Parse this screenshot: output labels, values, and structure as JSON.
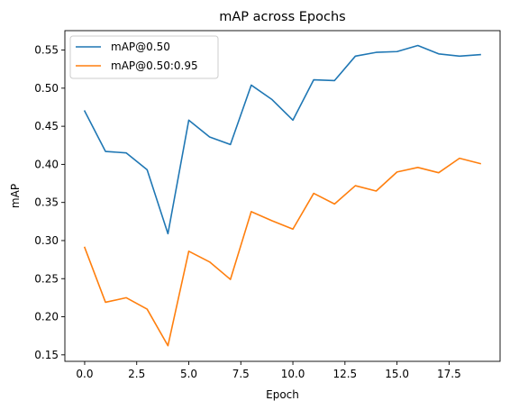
{
  "chart_data": {
    "type": "line",
    "title": "mAP across Epochs",
    "xlabel": "Epoch",
    "ylabel": "mAP",
    "xlim": [
      -0.95,
      19.95
    ],
    "ylim": [
      0.1415,
      0.5755
    ],
    "xticks": [
      0.0,
      2.5,
      5.0,
      7.5,
      10.0,
      12.5,
      15.0,
      17.5
    ],
    "xtick_labels": [
      "0.0",
      "2.5",
      "5.0",
      "7.5",
      "10.0",
      "12.5",
      "15.0",
      "17.5"
    ],
    "yticks": [
      0.15,
      0.2,
      0.25,
      0.3,
      0.35,
      0.4,
      0.45,
      0.5,
      0.55
    ],
    "ytick_labels": [
      "0.15",
      "0.20",
      "0.25",
      "0.30",
      "0.35",
      "0.40",
      "0.45",
      "0.50",
      "0.55"
    ],
    "grid": false,
    "legend_position": "top-left",
    "x": [
      0,
      1,
      2,
      3,
      4,
      5,
      6,
      7,
      8,
      9,
      10,
      11,
      12,
      13,
      14,
      15,
      16,
      17,
      18,
      19
    ],
    "series": [
      {
        "name": "mAP@0.50",
        "color": "#1f77b4",
        "values": [
          0.47,
          0.417,
          0.415,
          0.393,
          0.309,
          0.458,
          0.436,
          0.426,
          0.504,
          0.485,
          0.458,
          0.511,
          0.51,
          0.542,
          0.547,
          0.548,
          0.556,
          0.545,
          0.542,
          0.544
        ]
      },
      {
        "name": "mAP@0.50:0.95",
        "color": "#ff7f0e",
        "values": [
          0.291,
          0.219,
          0.225,
          0.21,
          0.162,
          0.286,
          0.272,
          0.249,
          0.338,
          0.326,
          0.315,
          0.362,
          0.348,
          0.372,
          0.365,
          0.39,
          0.396,
          0.389,
          0.408,
          0.401
        ]
      }
    ]
  }
}
